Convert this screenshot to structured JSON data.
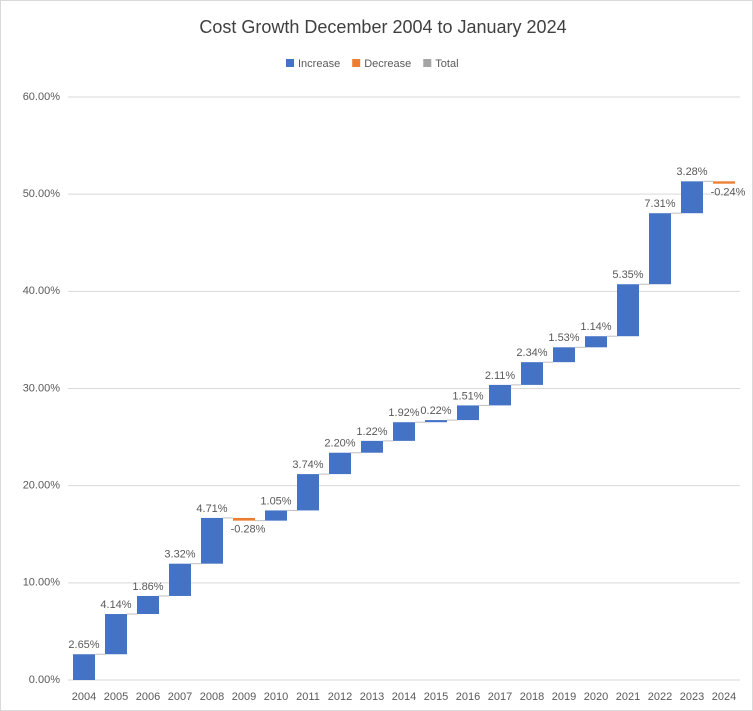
{
  "chart_data": {
    "type": "waterfall",
    "title": "Cost Growth December 2004 to January 2024",
    "categories": [
      "2004",
      "2005",
      "2006",
      "2007",
      "2008",
      "2009",
      "2010",
      "2011",
      "2012",
      "2013",
      "2014",
      "2015",
      "2016",
      "2017",
      "2018",
      "2019",
      "2020",
      "2021",
      "2022",
      "2023",
      "2024"
    ],
    "values": [
      2.65,
      4.14,
      1.86,
      3.32,
      4.71,
      -0.28,
      1.05,
      3.74,
      2.2,
      1.22,
      1.92,
      0.22,
      1.51,
      2.11,
      2.34,
      1.53,
      1.14,
      5.35,
      7.31,
      3.28,
      -0.24
    ],
    "value_labels": [
      "2.65%",
      "4.14%",
      "1.86%",
      "3.32%",
      "4.71%",
      "-0.28%",
      "1.05%",
      "3.74%",
      "2.20%",
      "1.22%",
      "1.92%",
      "0.22%",
      "1.51%",
      "2.11%",
      "2.34%",
      "1.53%",
      "1.14%",
      "5.35%",
      "7.31%",
      "3.28%",
      "-0.24%"
    ],
    "legend": [
      {
        "name": "Increase",
        "color": "#4472c4"
      },
      {
        "name": "Decrease",
        "color": "#ed7d31"
      },
      {
        "name": "Total",
        "color": "#a5a5a5"
      }
    ],
    "legend_position": "top",
    "ylim": [
      0,
      60
    ],
    "yticks": [
      {
        "value": 0,
        "label": "0.00%"
      },
      {
        "value": 10,
        "label": "10.00%"
      },
      {
        "value": 20,
        "label": "20.00%"
      },
      {
        "value": 30,
        "label": "30.00%"
      },
      {
        "value": 40,
        "label": "40.00%"
      },
      {
        "value": 50,
        "label": "50.00%"
      },
      {
        "value": 60,
        "label": "60.00%"
      }
    ],
    "grid": true
  }
}
